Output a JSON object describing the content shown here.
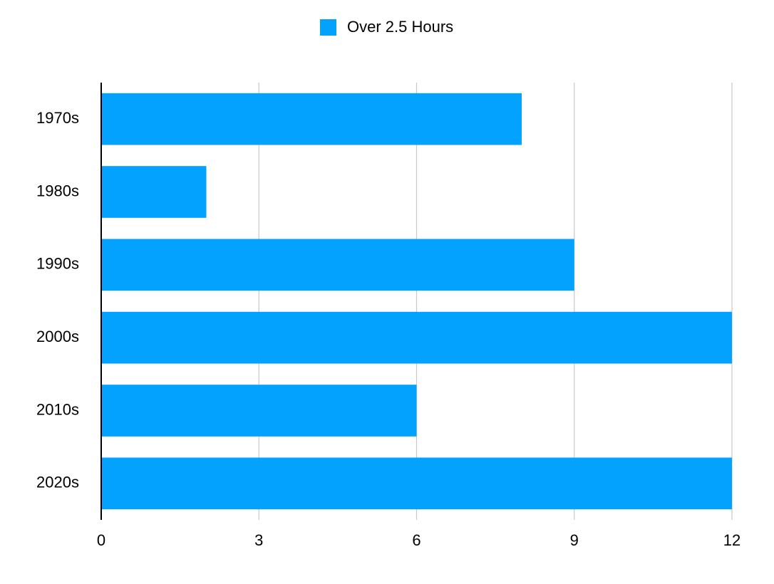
{
  "chart_data": {
    "type": "bar",
    "orientation": "horizontal",
    "categories": [
      "1970s",
      "1980s",
      "1990s",
      "2000s",
      "2010s",
      "2020s"
    ],
    "series": [
      {
        "name": "Over 2.5 Hours",
        "color": "#03a2fe",
        "values": [
          8,
          2,
          9,
          12,
          6,
          12
        ]
      }
    ],
    "xlim": [
      0,
      12
    ],
    "xticks": [
      0,
      3,
      6,
      9,
      12
    ],
    "grid": true,
    "legend": "top"
  }
}
